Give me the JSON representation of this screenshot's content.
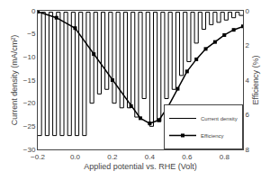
{
  "chart_data": {
    "type": "line",
    "xlabel": "Applied potential vs. RHE (Volt)",
    "ylabel": "Current density (mA/cm²)",
    "y2label": "Efficiency (%)",
    "xlim": [
      -0.2,
      0.9
    ],
    "xticks": [
      -0.2,
      {
        "value": 0,
        "label": "0.0"
      },
      0.2,
      0.4,
      0.6,
      0.8
    ],
    "ylim": [
      -30,
      0
    ],
    "yticks": [
      0,
      -5,
      -10,
      -15,
      -20,
      -25,
      -30
    ],
    "y2lim": [
      8,
      0
    ],
    "y2ticks": [
      0,
      2,
      4,
      6,
      8
    ],
    "grid": false,
    "legend": "lower right",
    "series": [
      {
        "name": "Current density",
        "color": "#000000",
        "x": [
          -0.2,
          -0.18,
          -0.18,
          -0.16,
          -0.16,
          -0.14,
          -0.14,
          -0.12,
          -0.12,
          -0.1,
          -0.1,
          -0.08,
          -0.08,
          -0.06,
          -0.06,
          -0.04,
          -0.04,
          -0.02,
          -0.02,
          0.0,
          0.0,
          0.02,
          0.02,
          0.04,
          0.04,
          0.06,
          0.06,
          0.08,
          0.08,
          0.1,
          0.1,
          0.12,
          0.12,
          0.14,
          0.14,
          0.16,
          0.16,
          0.18,
          0.18,
          0.2,
          0.2,
          0.22,
          0.22,
          0.24,
          0.24,
          0.26,
          0.26,
          0.28,
          0.28,
          0.3,
          0.3,
          0.32,
          0.32,
          0.34,
          0.34,
          0.36,
          0.36,
          0.38,
          0.38,
          0.4,
          0.4,
          0.42,
          0.42,
          0.44,
          0.44,
          0.46,
          0.46,
          0.48,
          0.48,
          0.5,
          0.5,
          0.52,
          0.52,
          0.54,
          0.54,
          0.56,
          0.56,
          0.58,
          0.58,
          0.6,
          0.6,
          0.62,
          0.62,
          0.64,
          0.64,
          0.66,
          0.66,
          0.68,
          0.68,
          0.7,
          0.7,
          0.72,
          0.72,
          0.74,
          0.74,
          0.76,
          0.76,
          0.78,
          0.78,
          0.8,
          0.8,
          0.82,
          0.82,
          0.84,
          0.84,
          0.86,
          0.86,
          0.88,
          0.88,
          0.9
        ],
        "values": [
          -27,
          -27,
          -0.3,
          -0.3,
          -27,
          -27,
          -0.3,
          -0.3,
          -27,
          -27,
          -0.3,
          -0.3,
          -27,
          -27,
          -0.3,
          -0.3,
          -27,
          -27,
          -0.3,
          -0.3,
          -27,
          -27,
          -0.3,
          -0.3,
          -27,
          -27,
          -0.3,
          -0.3,
          -20,
          -20,
          -0.3,
          -0.3,
          -18,
          -18,
          -0.3,
          -0.3,
          -17,
          -17,
          -0.3,
          -0.3,
          -20,
          -20,
          -0.3,
          -0.3,
          -21,
          -21,
          -0.3,
          -0.3,
          -21,
          -21,
          -0.3,
          -0.3,
          -23,
          -23,
          -0.3,
          -0.3,
          -19,
          -19,
          -0.3,
          -0.3,
          -25,
          -25,
          -0.3,
          -0.3,
          -24,
          -24,
          -0.3,
          -0.3,
          -19,
          -19,
          -0.3,
          -0.3,
          -17,
          -17,
          -0.3,
          -0.3,
          -14,
          -14,
          -0.3,
          -0.3,
          -11,
          -11,
          -0.3,
          -0.3,
          -7,
          -7,
          -0.3,
          -0.3,
          -4,
          -4,
          -0.3,
          -0.3,
          -3,
          -3,
          -0.3,
          -0.3,
          -2.5,
          -2.5,
          -0.3,
          -0.3,
          -2,
          -2,
          -0.3,
          -0.3,
          -1.5,
          -1.5,
          -0.3,
          -0.3,
          -1,
          -1
        ]
      },
      {
        "name": "Efficiency",
        "color": "#000000",
        "axis": "y2",
        "marker": "square",
        "x": [
          -0.2,
          -0.1,
          0.0,
          0.1,
          0.2,
          0.3,
          0.35,
          0.4,
          0.45,
          0.5,
          0.55,
          0.6,
          0.65,
          0.7,
          0.75,
          0.8,
          0.85,
          0.9
        ],
        "values": [
          0.05,
          0.4,
          1.0,
          2.5,
          4.0,
          5.5,
          6.2,
          6.5,
          6.3,
          5.5,
          4.5,
          3.5,
          2.8,
          2.2,
          1.8,
          1.4,
          1.1,
          0.9
        ]
      }
    ]
  }
}
